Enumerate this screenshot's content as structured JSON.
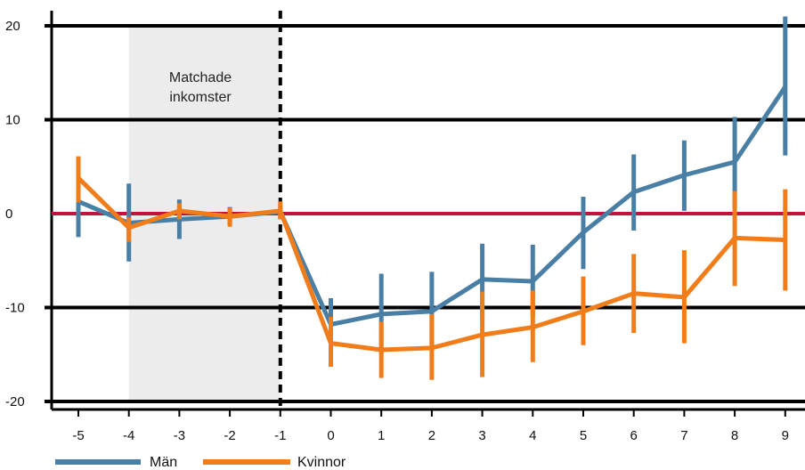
{
  "chart_data": {
    "type": "line",
    "x": [
      -5,
      -4,
      -3,
      -2,
      -1,
      0,
      1,
      2,
      3,
      4,
      5,
      6,
      7,
      8,
      9
    ],
    "x_tick_labels": [
      "-5",
      "-4",
      "-3",
      "-2",
      "-1",
      "0",
      "1",
      "2",
      "3",
      "4",
      "5",
      "6",
      "7",
      "8",
      "9"
    ],
    "y_ticks": [
      20,
      10,
      0,
      -10,
      -20
    ],
    "y_tick_labels": [
      "20",
      "10",
      "0",
      "-10",
      "-20"
    ],
    "ylim": [
      -20,
      20
    ],
    "xlim": [
      -5.5,
      9.3
    ],
    "grid": "horizontal",
    "zero_line_color": "#c0143c",
    "shaded_region": {
      "x_from": -4,
      "x_to": -1,
      "color": "#ececec"
    },
    "annotation": {
      "lines": [
        "Matchade",
        "inkomster"
      ]
    },
    "vertical_dashed_line": {
      "x": -1
    },
    "legend_placement": "bottom-left",
    "series": [
      {
        "name": "Män",
        "color": "#4a7fa5",
        "values": [
          1.3,
          -1.0,
          -0.6,
          -0.3,
          0.2,
          -11.8,
          -10.7,
          -10.4,
          -7.0,
          -7.2,
          -2.0,
          2.3,
          4.1,
          5.5,
          13.5
        ],
        "ci_low": [
          -2.5,
          -5.1,
          -2.7,
          -1.2,
          -0.6,
          -14.6,
          -15.0,
          -14.6,
          -10.8,
          -11.0,
          -5.9,
          -1.8,
          0.3,
          0.6,
          6.2
        ],
        "ci_high": [
          4.8,
          3.2,
          1.5,
          0.7,
          0.8,
          -9.0,
          -6.4,
          -6.2,
          -3.2,
          -3.3,
          1.8,
          6.3,
          7.8,
          10.3,
          21.0
        ]
      },
      {
        "name": "Kvinnor",
        "color": "#f07d19",
        "values": [
          3.8,
          -1.5,
          0.3,
          -0.3,
          0.3,
          -13.8,
          -14.5,
          -14.3,
          -12.9,
          -12.1,
          -10.4,
          -8.5,
          -8.9,
          -2.6,
          -2.8
        ],
        "ci_low": [
          1.2,
          -3.0,
          -0.6,
          -1.4,
          -0.6,
          -16.3,
          -17.5,
          -17.7,
          -17.4,
          -15.8,
          -14.0,
          -12.7,
          -13.8,
          -7.7,
          -8.2
        ],
        "ci_high": [
          6.1,
          -0.4,
          1.1,
          0.6,
          1.3,
          -11.0,
          -11.5,
          -10.7,
          -8.3,
          -8.2,
          -6.7,
          -4.3,
          -3.9,
          2.4,
          2.6
        ]
      }
    ]
  }
}
